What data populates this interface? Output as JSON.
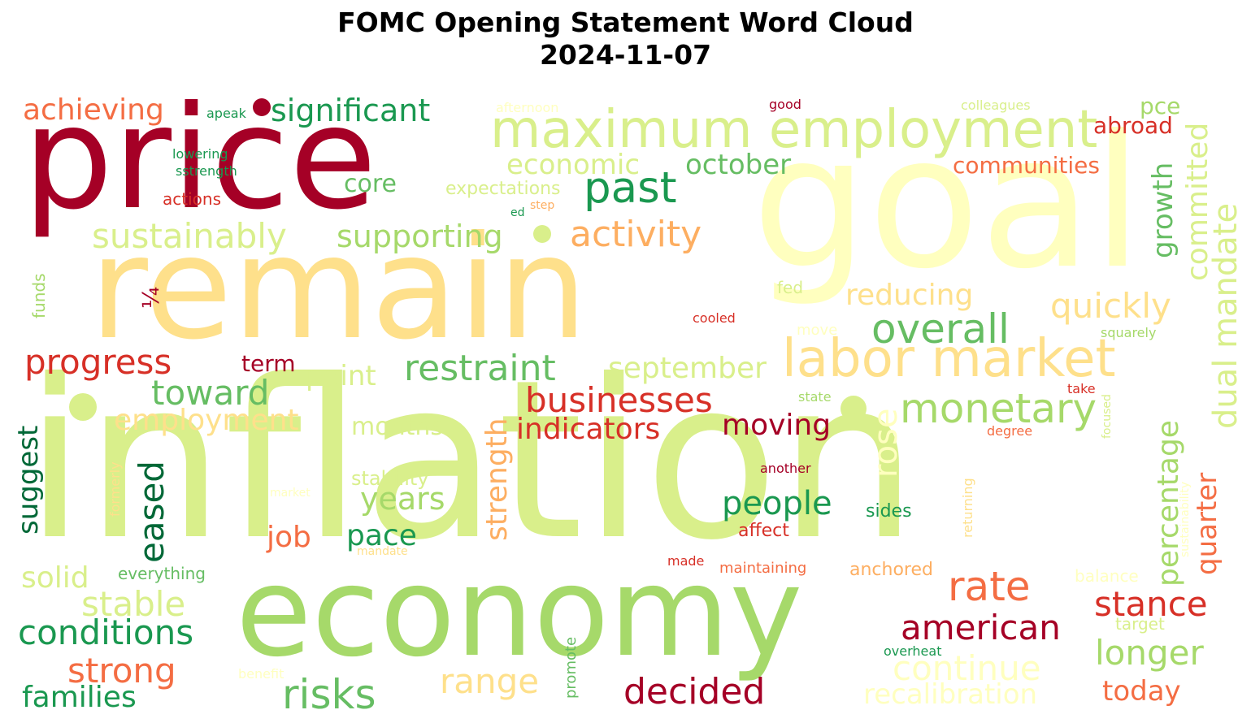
{
  "title": {
    "line1": "FOMC Opening Statement Word Cloud",
    "line2": "2024-11-07"
  },
  "colors": {
    "dark_red": "#a50026",
    "red": "#d73027",
    "orange_red": "#f46d43",
    "orange": "#fdae61",
    "light_orange": "#fee08b",
    "pale_yellow": "#ffffbf",
    "yellow_green": "#d9ef8b",
    "light_green": "#a6d96a",
    "green": "#66bd63",
    "dark_green": "#1a9850",
    "darkest_green": "#006837"
  },
  "words": [
    {
      "text": "inflation"
    },
    {
      "text": "goal"
    },
    {
      "text": "remain"
    },
    {
      "text": "price"
    },
    {
      "text": "economy"
    },
    {
      "text": "maximum employment"
    },
    {
      "text": "labor market"
    },
    {
      "text": "significant"
    },
    {
      "text": "achieving"
    },
    {
      "text": "past"
    },
    {
      "text": "economic"
    },
    {
      "text": "october"
    },
    {
      "text": "sustainably"
    },
    {
      "text": "supporting"
    },
    {
      "text": "activity"
    },
    {
      "text": "core"
    },
    {
      "text": "expectations"
    },
    {
      "text": "reducing"
    },
    {
      "text": "quickly"
    },
    {
      "text": "overall"
    },
    {
      "text": "progress"
    },
    {
      "text": "restraint"
    },
    {
      "text": "september"
    },
    {
      "text": "point"
    },
    {
      "text": "toward"
    },
    {
      "text": "businesses"
    },
    {
      "text": "monetary"
    },
    {
      "text": "employment"
    },
    {
      "text": "indicators"
    },
    {
      "text": "moving"
    },
    {
      "text": "months"
    },
    {
      "text": "stability"
    },
    {
      "text": "years"
    },
    {
      "text": "people"
    },
    {
      "text": "job"
    },
    {
      "text": "pace"
    },
    {
      "text": "rate"
    },
    {
      "text": "stance"
    },
    {
      "text": "american"
    },
    {
      "text": "stable"
    },
    {
      "text": "conditions"
    },
    {
      "text": "solid"
    },
    {
      "text": "strong"
    },
    {
      "text": "families"
    },
    {
      "text": "risks"
    },
    {
      "text": "range"
    },
    {
      "text": "decided"
    },
    {
      "text": "continue"
    },
    {
      "text": "recalibration"
    },
    {
      "text": "longer"
    },
    {
      "text": "today"
    },
    {
      "text": "pce"
    },
    {
      "text": "abroad"
    },
    {
      "text": "communities"
    },
    {
      "text": "colleagues"
    },
    {
      "text": "good"
    },
    {
      "text": "afternoon"
    },
    {
      "text": "apeak"
    },
    {
      "text": "lowering"
    },
    {
      "text": "sstrength"
    },
    {
      "text": "actions"
    },
    {
      "text": "step"
    },
    {
      "text": "ed"
    },
    {
      "text": "fed"
    },
    {
      "text": "cooled"
    },
    {
      "text": "move"
    },
    {
      "text": "squarely"
    },
    {
      "text": "term"
    },
    {
      "text": "state"
    },
    {
      "text": "take"
    },
    {
      "text": "degree"
    },
    {
      "text": "another"
    },
    {
      "text": "market"
    },
    {
      "text": "sides"
    },
    {
      "text": "affect"
    },
    {
      "text": "everything"
    },
    {
      "text": "mandate"
    },
    {
      "text": "made"
    },
    {
      "text": "maintaining"
    },
    {
      "text": "anchored"
    },
    {
      "text": "balance"
    },
    {
      "text": "target"
    },
    {
      "text": "overheat"
    },
    {
      "text": "benefit"
    },
    {
      "text": "growth"
    },
    {
      "text": "committed"
    },
    {
      "text": "dual mandate"
    },
    {
      "text": "rose"
    },
    {
      "text": "percentage"
    },
    {
      "text": "quarter"
    },
    {
      "text": "strength"
    },
    {
      "text": "suggest"
    },
    {
      "text": "eased"
    },
    {
      "text": "funds"
    },
    {
      "text": "¼"
    },
    {
      "text": "formerly"
    },
    {
      "text": "returning"
    },
    {
      "text": "focused"
    },
    {
      "text": "sustainability"
    },
    {
      "text": "promote"
    }
  ]
}
